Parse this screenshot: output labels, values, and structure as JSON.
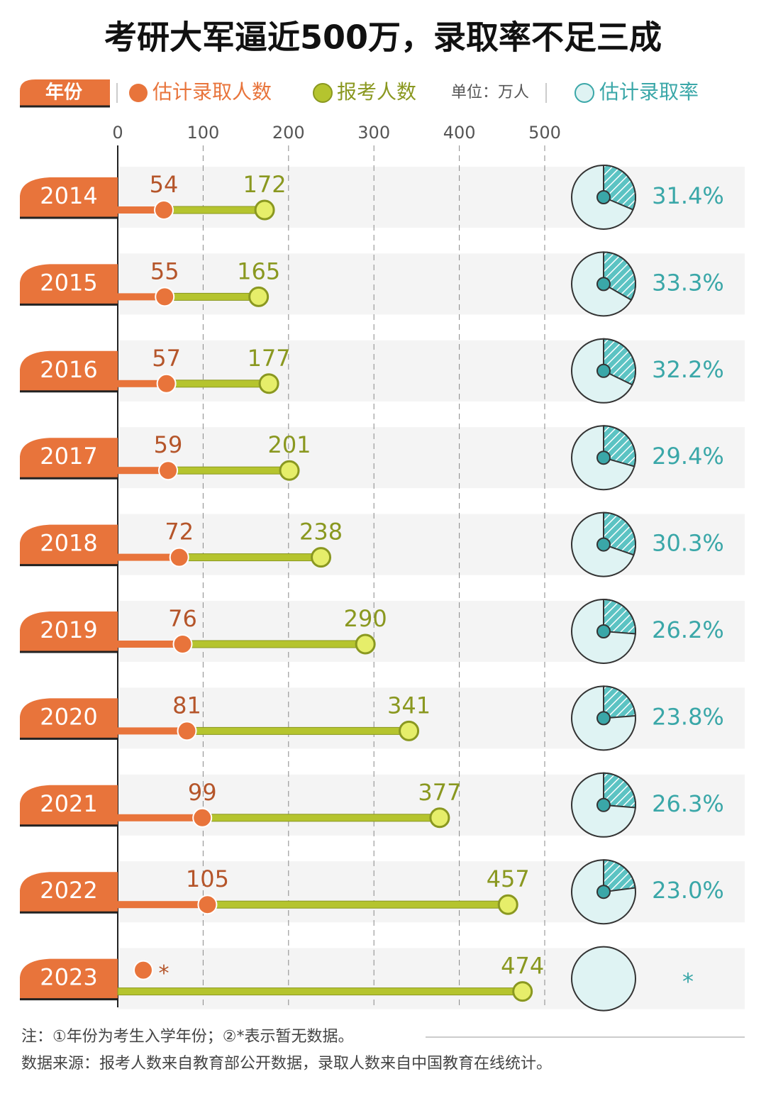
{
  "chart_data": {
    "type": "dumbbell",
    "title": "考研大军逼近500万，录取率不足三成",
    "category_label": "年份",
    "unit": "单位：万人",
    "categories": [
      "2014",
      "2015",
      "2016",
      "2017",
      "2018",
      "2019",
      "2020",
      "2021",
      "2022",
      "2023"
    ],
    "series": [
      {
        "name": "估计录取人数",
        "color": "#e8743b",
        "values": [
          54,
          55,
          57,
          59,
          72,
          76,
          81,
          99,
          105,
          null
        ],
        "value_labels": [
          "54",
          "55",
          "57",
          "59",
          "72",
          "76",
          "81",
          "99",
          "105",
          "*"
        ]
      },
      {
        "name": "报考人数",
        "color": "#b5c42e",
        "values": [
          172,
          165,
          177,
          201,
          238,
          290,
          341,
          377,
          457,
          474
        ]
      }
    ],
    "rate": {
      "name": "估计录取率",
      "color": "#3aa7a8",
      "values": [
        31.4,
        33.3,
        32.2,
        29.4,
        30.3,
        26.2,
        23.8,
        26.3,
        23.0,
        null
      ],
      "value_labels": [
        "31.4%",
        "33.3%",
        "32.2%",
        "29.4%",
        "30.3%",
        "26.2%",
        "23.8%",
        "26.3%",
        "23.0%",
        "*"
      ]
    },
    "xlim": [
      0,
      500
    ],
    "xticks": [
      0,
      100,
      200,
      300,
      400,
      500
    ],
    "notes": [
      "注：①年份为考生入学年份；②*表示暂无数据。",
      "数据来源：报考人数来自教育部公开数据，录取人数来自中国教育在线统计。"
    ]
  }
}
